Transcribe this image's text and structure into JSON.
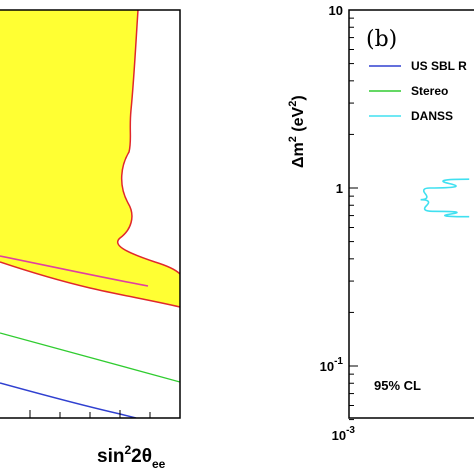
{
  "chart_data": [
    {
      "panel": "a",
      "type": "area",
      "xlabel": {
        "main": "sin",
        "sup": "2",
        "rest": "2θ",
        "sub": "ee"
      },
      "regions": [
        {
          "name": "",
          "color": "#ffff33",
          "border": "#e0282c"
        }
      ],
      "curves": [
        {
          "name": "",
          "color": "#e040a0"
        },
        {
          "name": "",
          "color": "#30cc30"
        },
        {
          "name": "",
          "color": "#3040d0"
        }
      ]
    },
    {
      "panel": "b",
      "type": "line",
      "panel_tag": "(b)",
      "ylabel": {
        "main": "Δm",
        "sup1": "2",
        "mid": " (eV",
        "sup2": "2",
        "end": ")"
      },
      "yscale": "log",
      "xscale": "log",
      "ylim": [
        0.05,
        10
      ],
      "yticks": [
        {
          "value": 10,
          "label": "10"
        },
        {
          "value": 1,
          "label": "1"
        },
        {
          "value": 0.1,
          "base": "10",
          "exp": "-1"
        }
      ],
      "xticks": [
        {
          "value": 0.001,
          "base": "10",
          "exp": "-3"
        }
      ],
      "legend": {
        "placement": "top-right",
        "entries": [
          {
            "label": "US SBL R",
            "color": "#3040d0"
          },
          {
            "label": "Stereo",
            "color": "#30cc30"
          },
          {
            "label": "DANSS",
            "color": "#40e0f0"
          }
        ]
      },
      "annotation": "95% CL",
      "series": [
        {
          "name": "DANSS",
          "color": "#40e0f0",
          "points": [
            [
              0.04,
              1.12
            ],
            [
              0.012,
              1.0
            ],
            [
              0.009,
              0.86
            ],
            [
              0.013,
              0.74
            ],
            [
              0.04,
              0.69
            ]
          ]
        }
      ]
    }
  ]
}
